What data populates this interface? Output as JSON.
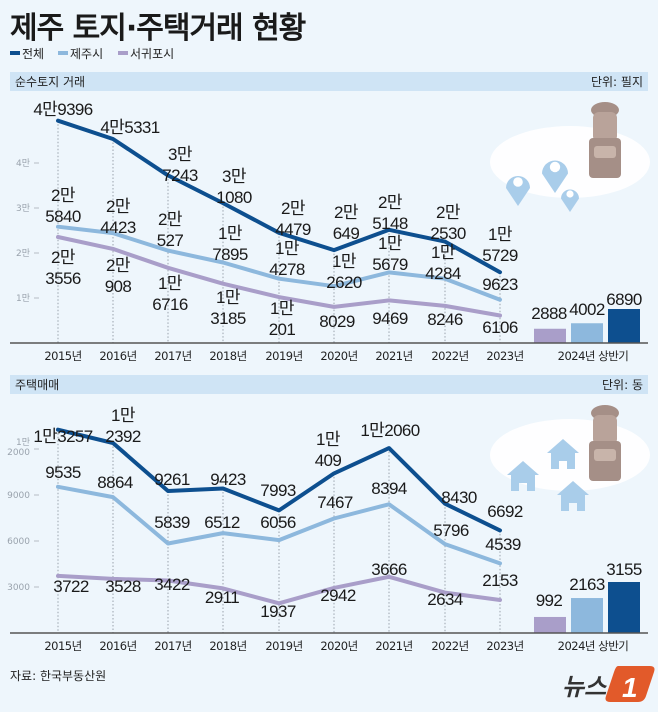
{
  "title": "제주 토지·주택거래 현황",
  "legend": [
    {
      "label": "전체",
      "color": "#0d4f8f"
    },
    {
      "label": "제주시",
      "color": "#8db8dd"
    },
    {
      "label": "서귀포시",
      "color": "#a99ec9"
    }
  ],
  "source": "자료: 한국부동산원",
  "logo": "뉴스1",
  "chart_data": [
    {
      "type": "line",
      "title": "순수토지 거래",
      "unit": "단위: 필지",
      "categories": [
        "2015년",
        "2016년",
        "2017년",
        "2018년",
        "2019년",
        "2020년",
        "2021년",
        "2022년",
        "2023년"
      ],
      "yticks": [
        {
          "value": 10000,
          "label": "1만"
        },
        {
          "value": 20000,
          "label": "2만"
        },
        {
          "value": 30000,
          "label": "3만"
        },
        {
          "value": 40000,
          "label": "4만"
        }
      ],
      "ylim": [
        0,
        50000
      ],
      "series": [
        {
          "name": "전체",
          "values": [
            49396,
            45331,
            37243,
            31080,
            24479,
            20649,
            25148,
            22530,
            15729
          ],
          "labels": [
            "4만9396",
            "4만5331",
            "3만\n7243",
            "3만\n1080",
            "2만\n4479",
            "2만\n649",
            "2만\n5148",
            "2만\n2530",
            "1만\n5729"
          ]
        },
        {
          "name": "제주시",
          "values": [
            25840,
            24423,
            20527,
            17895,
            14278,
            12620,
            15679,
            14284,
            9623
          ],
          "labels": [
            "2만\n5840",
            "2만\n4423",
            "2만\n527",
            "1만\n7895",
            "1만\n4278",
            "1만\n2620",
            "1만\n5679",
            "1만\n4284",
            "9623"
          ]
        },
        {
          "name": "서귀포시",
          "values": [
            23556,
            20908,
            16716,
            13185,
            10201,
            8029,
            9469,
            8246,
            6106
          ],
          "labels": [
            "2만\n3556",
            "2만\n908",
            "1만\n6716",
            "1만\n3185",
            "1만\n201",
            "8029",
            "9469",
            "8246",
            "6106"
          ]
        }
      ],
      "bar": {
        "category": "2024년 상반기",
        "series": [
          "서귀포시",
          "제주시",
          "전체"
        ],
        "values": [
          2888,
          4002,
          6890
        ],
        "labels": [
          "2888",
          "4002",
          "6890"
        ]
      }
    },
    {
      "type": "line",
      "title": "주택매매",
      "unit": "단위: 동",
      "categories": [
        "2015년",
        "2016년",
        "2017년",
        "2018년",
        "2019년",
        "2020년",
        "2021년",
        "2022년",
        "2023년"
      ],
      "yticks": [
        {
          "value": 3000,
          "label": "3000"
        },
        {
          "value": 6000,
          "label": "6000"
        },
        {
          "value": 9000,
          "label": "9000"
        },
        {
          "value": 12000,
          "label": "1만\n2000"
        }
      ],
      "ylim": [
        0,
        15000
      ],
      "series": [
        {
          "name": "전체",
          "values": [
            13257,
            12392,
            9261,
            9423,
            7993,
            10409,
            12060,
            8430,
            6692
          ],
          "labels": [
            "1만3257",
            "1만\n2392",
            "9261",
            "9423",
            "7993",
            "1만\n409",
            "1만2060",
            "8430",
            "6692"
          ]
        },
        {
          "name": "제주시",
          "values": [
            9535,
            8864,
            5839,
            6512,
            6056,
            7467,
            8394,
            5796,
            4539
          ],
          "labels": [
            "9535",
            "8864",
            "5839",
            "6512",
            "6056",
            "7467",
            "8394",
            "5796",
            "4539"
          ]
        },
        {
          "name": "서귀포시",
          "values": [
            3722,
            3528,
            3422,
            2911,
            1937,
            2942,
            3666,
            2634,
            2153
          ],
          "labels": [
            "3722",
            "3528",
            "3422",
            "2911",
            "1937",
            "2942",
            "3666",
            "2634",
            "2153"
          ]
        }
      ],
      "bar": {
        "category": "2024년 상반기",
        "series": [
          "서귀포시",
          "제주시",
          "전체"
        ],
        "values": [
          992,
          2163,
          3155
        ],
        "labels": [
          "992",
          "2163",
          "3155"
        ]
      }
    }
  ]
}
